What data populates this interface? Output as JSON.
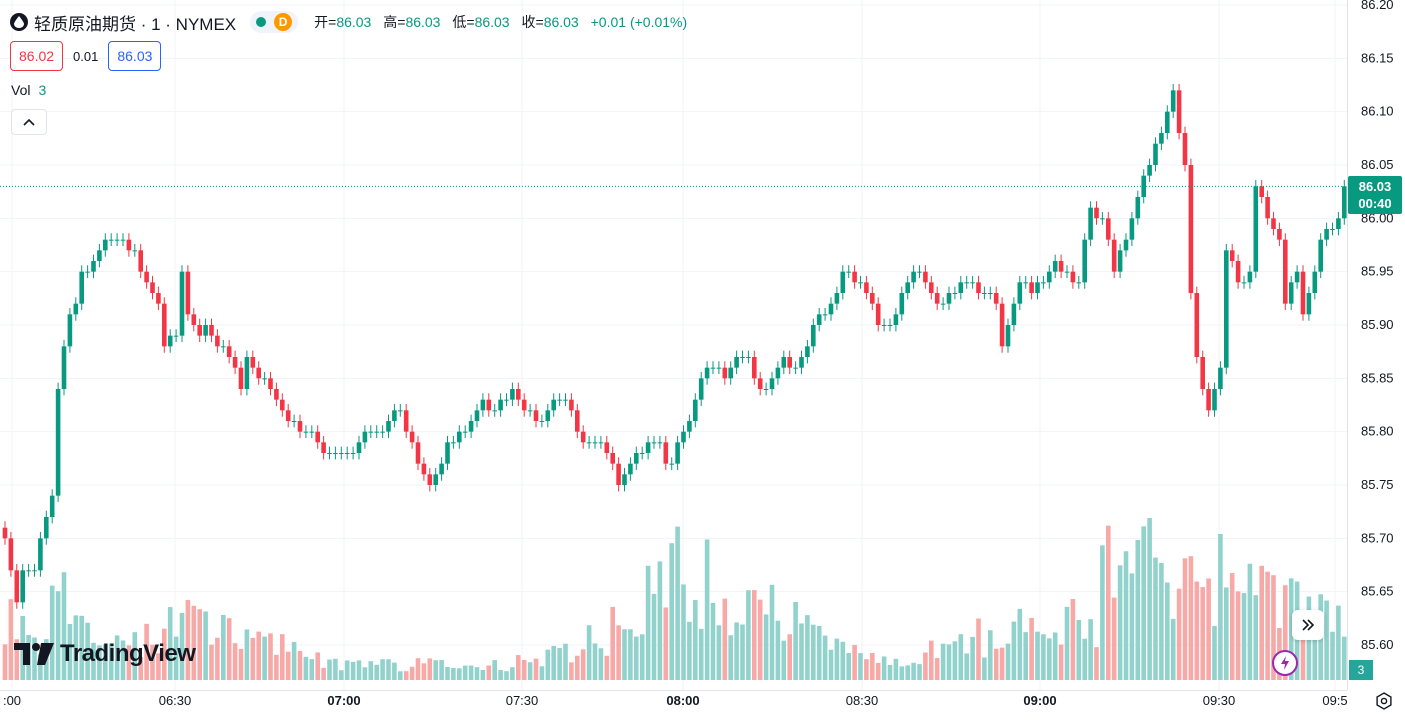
{
  "header": {
    "symbol_title": "轻质原油期货 · 1 · NYMEX",
    "badge_letter": "D",
    "ohlc": [
      {
        "label": "开=",
        "value": "86.03"
      },
      {
        "label": "高=",
        "value": "86.03"
      },
      {
        "label": "低=",
        "value": "86.03"
      },
      {
        "label": "收=",
        "value": "86.03"
      }
    ],
    "change": "+0.01 (+0.01%)",
    "bid": "86.02",
    "spread": "0.01",
    "ask": "86.03"
  },
  "volume_legend": {
    "label": "Vol",
    "value": "3"
  },
  "logo_text": "TradingView",
  "current_price": {
    "price": "86.03",
    "countdown": "00:40"
  },
  "volume_axis_label": "3",
  "colors": {
    "up": "#089981",
    "down": "#f23645",
    "vol_up": "#92d2cc",
    "vol_down": "#f7a9a7",
    "grid": "#f0f3fa",
    "accent_blue": "#2962ff"
  },
  "icons": {
    "symbol": "oil-drop-icon",
    "collapse": "chevron-up-icon",
    "scroll": "double-chevron-right-icon",
    "flash": "lightning-icon",
    "settings": "gear-icon"
  },
  "chart_data": {
    "type": "candlestick",
    "interval": "1 minute",
    "y_axis": {
      "ticks": [
        "86.20",
        "86.15",
        "86.10",
        "86.05",
        "86.00",
        "85.95",
        "85.90",
        "85.85",
        "85.80",
        "85.75",
        "85.70",
        "85.65",
        "85.60"
      ],
      "range": [
        85.58,
        86.2
      ]
    },
    "x_axis": {
      "ticks": [
        ":00",
        "06:30",
        "07:00",
        "07:30",
        "08:00",
        "08:30",
        "09:00",
        "09:30",
        "09:5"
      ],
      "bold": [
        "07:00",
        "08:00",
        "09:00"
      ]
    },
    "grid": true,
    "close_path": [
      [
        0,
        85.7
      ],
      [
        2,
        85.64
      ],
      [
        3,
        85.67
      ],
      [
        5,
        85.67
      ],
      [
        6,
        85.7
      ],
      [
        8,
        85.75
      ],
      [
        9,
        85.85
      ],
      [
        11,
        85.91
      ],
      [
        13,
        85.95
      ],
      [
        15,
        85.96
      ],
      [
        16,
        85.97
      ],
      [
        17,
        85.98
      ],
      [
        19,
        85.98
      ],
      [
        21,
        85.97
      ],
      [
        23,
        85.96
      ],
      [
        25,
        85.94
      ],
      [
        26,
        85.93
      ],
      [
        27,
        85.89
      ],
      [
        29,
        85.9
      ],
      [
        30,
        85.95
      ],
      [
        31,
        85.91
      ],
      [
        33,
        85.89
      ],
      [
        34,
        85.9
      ],
      [
        36,
        85.88
      ],
      [
        38,
        85.88
      ],
      [
        40,
        85.85
      ],
      [
        41,
        85.87
      ],
      [
        43,
        85.86
      ],
      [
        45,
        85.84
      ],
      [
        47,
        85.82
      ],
      [
        49,
        85.81
      ],
      [
        51,
        85.8
      ],
      [
        53,
        85.8
      ],
      [
        55,
        85.78
      ],
      [
        57,
        85.79
      ],
      [
        59,
        85.79
      ],
      [
        61,
        85.8
      ],
      [
        63,
        85.8
      ],
      [
        65,
        85.81
      ],
      [
        67,
        85.83
      ],
      [
        68,
        85.81
      ],
      [
        70,
        85.78
      ],
      [
        72,
        85.76
      ],
      [
        73,
        85.77
      ],
      [
        75,
        85.79
      ],
      [
        77,
        85.8
      ],
      [
        79,
        85.81
      ],
      [
        81,
        85.83
      ],
      [
        83,
        85.83
      ],
      [
        85,
        85.84
      ],
      [
        86,
        85.85
      ],
      [
        88,
        85.83
      ],
      [
        90,
        85.81
      ],
      [
        92,
        85.82
      ],
      [
        94,
        85.83
      ],
      [
        96,
        85.82
      ],
      [
        98,
        85.8
      ],
      [
        100,
        85.8
      ],
      [
        102,
        85.79
      ],
      [
        103,
        85.78
      ],
      [
        104,
        85.75
      ],
      [
        106,
        85.77
      ],
      [
        108,
        85.78
      ],
      [
        110,
        85.79
      ],
      [
        112,
        85.78
      ],
      [
        113,
        85.78
      ],
      [
        115,
        85.81
      ],
      [
        117,
        85.83
      ],
      [
        118,
        85.86
      ],
      [
        120,
        85.86
      ],
      [
        122,
        85.85
      ],
      [
        124,
        85.87
      ],
      [
        126,
        85.87
      ],
      [
        128,
        85.84
      ],
      [
        130,
        85.86
      ],
      [
        132,
        85.87
      ],
      [
        134,
        85.86
      ],
      [
        136,
        85.88
      ],
      [
        138,
        85.91
      ],
      [
        140,
        85.92
      ],
      [
        142,
        85.95
      ],
      [
        144,
        85.95
      ],
      [
        146,
        85.93
      ],
      [
        148,
        85.91
      ],
      [
        150,
        85.9
      ],
      [
        152,
        85.93
      ],
      [
        154,
        85.95
      ],
      [
        156,
        85.94
      ],
      [
        158,
        85.93
      ],
      [
        160,
        85.93
      ],
      [
        162,
        85.95
      ],
      [
        164,
        85.94
      ],
      [
        166,
        85.93
      ],
      [
        168,
        85.92
      ],
      [
        169,
        85.88
      ],
      [
        171,
        85.92
      ],
      [
        172,
        85.94
      ],
      [
        174,
        85.94
      ],
      [
        176,
        85.95
      ],
      [
        178,
        85.96
      ],
      [
        180,
        85.95
      ],
      [
        182,
        85.94
      ],
      [
        184,
        86.01
      ],
      [
        186,
        86.0
      ],
      [
        188,
        85.96
      ],
      [
        190,
        85.99
      ],
      [
        192,
        86.03
      ],
      [
        194,
        86.05
      ],
      [
        196,
        86.08
      ],
      [
        198,
        86.12
      ],
      [
        200,
        86.05
      ],
      [
        201,
        85.94
      ],
      [
        202,
        85.88
      ],
      [
        204,
        85.82
      ],
      [
        206,
        85.87
      ],
      [
        207,
        85.97
      ],
      [
        209,
        85.94
      ],
      [
        211,
        85.95
      ],
      [
        212,
        86.03
      ],
      [
        214,
        86.0
      ],
      [
        216,
        85.98
      ],
      [
        217,
        85.93
      ],
      [
        219,
        85.96
      ],
      [
        220,
        85.92
      ],
      [
        222,
        85.96
      ],
      [
        224,
        85.99
      ],
      [
        226,
        86.0
      ],
      [
        227,
        86.03
      ],
      [
        228,
        86.04
      ],
      [
        229,
        86.03
      ]
    ],
    "volume_sample": [
      [
        0,
        21
      ],
      [
        7,
        12
      ],
      [
        9,
        45
      ],
      [
        10,
        26
      ],
      [
        15,
        8
      ],
      [
        30,
        17
      ],
      [
        60,
        4
      ],
      [
        90,
        5
      ],
      [
        105,
        16
      ],
      [
        112,
        33
      ],
      [
        150,
        4
      ],
      [
        170,
        15
      ],
      [
        185,
        19
      ],
      [
        186,
        42
      ],
      [
        188,
        30
      ],
      [
        198,
        33
      ],
      [
        200,
        48
      ],
      [
        201,
        48
      ],
      [
        202,
        36
      ],
      [
        208,
        25
      ],
      [
        228,
        15
      ],
      [
        229,
        3
      ]
    ]
  }
}
